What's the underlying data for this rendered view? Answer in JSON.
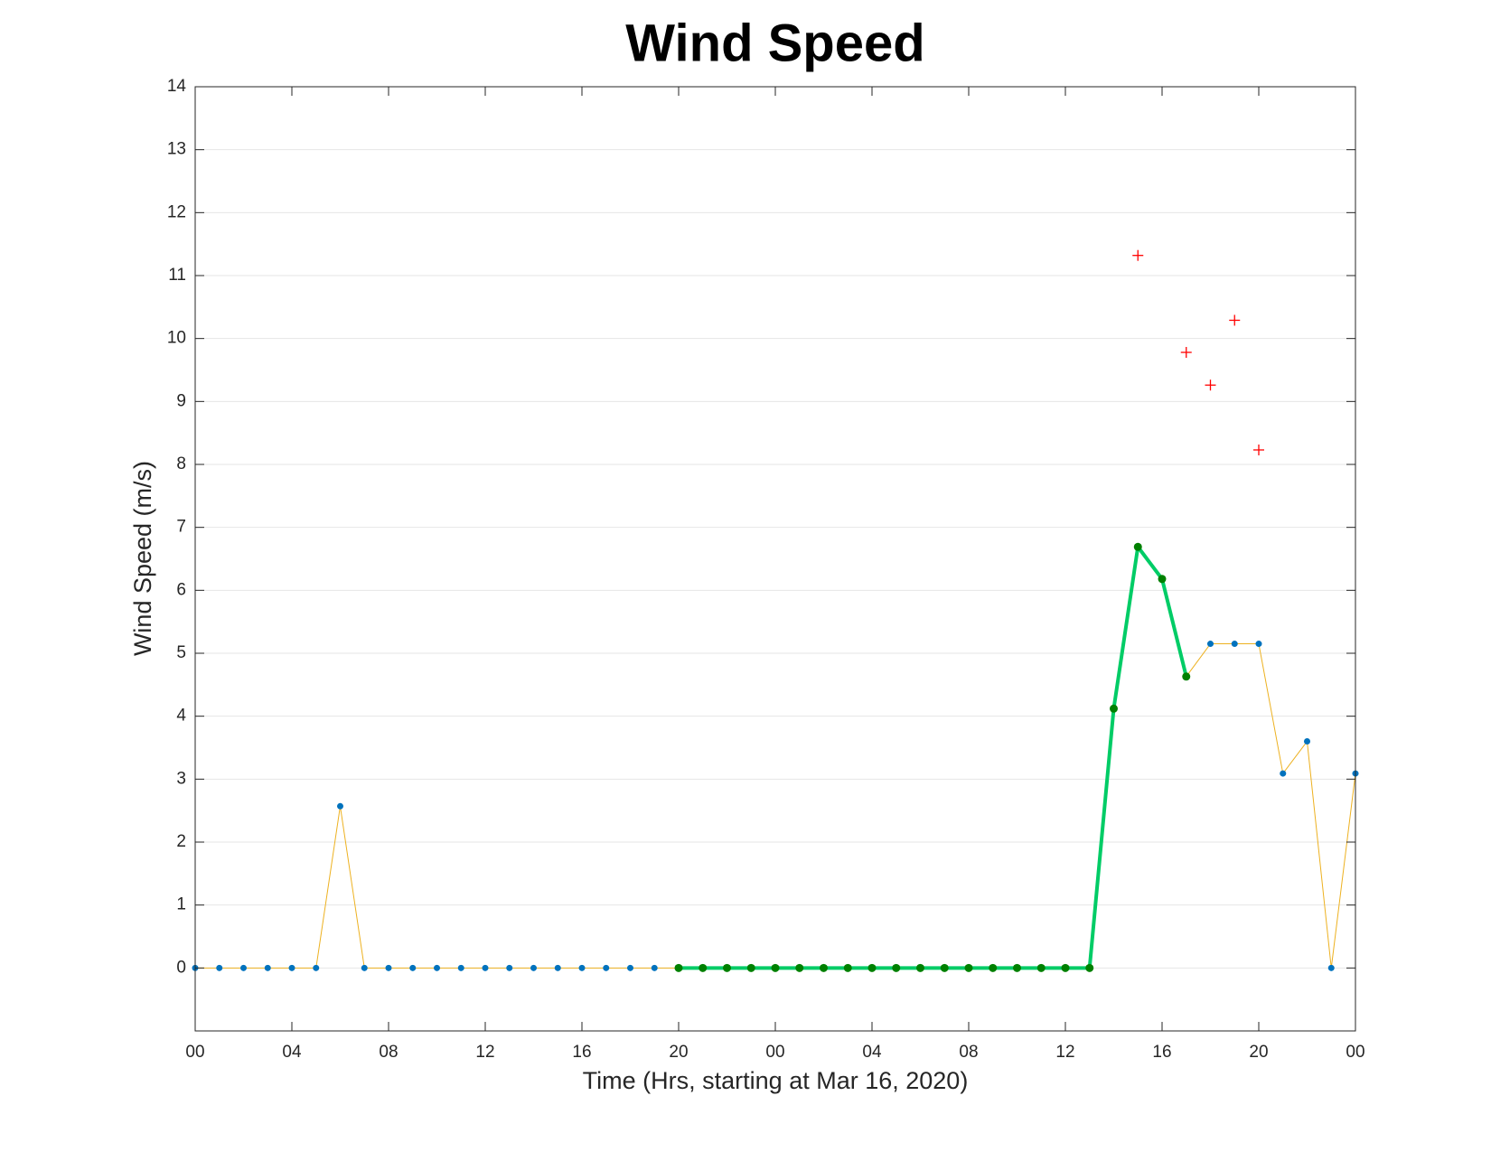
{
  "chart_data": {
    "type": "line",
    "title": "Wind Speed",
    "xlabel": "Time (Hrs, starting at Mar 16, 2020)",
    "ylabel": "Wind Speed (m/s)",
    "xlim": [
      0,
      48
    ],
    "xticks": [
      {
        "value": 0,
        "label": "00"
      },
      {
        "value": 4,
        "label": "04"
      },
      {
        "value": 8,
        "label": "08"
      },
      {
        "value": 12,
        "label": "12"
      },
      {
        "value": 16,
        "label": "16"
      },
      {
        "value": 20,
        "label": "20"
      },
      {
        "value": 24,
        "label": "00"
      },
      {
        "value": 28,
        "label": "04"
      },
      {
        "value": 32,
        "label": "08"
      },
      {
        "value": 36,
        "label": "12"
      },
      {
        "value": 40,
        "label": "16"
      },
      {
        "value": 44,
        "label": "20"
      },
      {
        "value": 48,
        "label": "00"
      }
    ],
    "ylim": [
      -1,
      14
    ],
    "yticks": [
      0,
      1,
      2,
      3,
      4,
      5,
      6,
      7,
      8,
      9,
      10,
      11,
      12,
      13,
      14
    ],
    "grid": true,
    "series": [
      {
        "type": "line",
        "color": "#edb120",
        "marker_color": "#0072bd",
        "line_width": 1,
        "marker": "dot",
        "x": [
          0,
          1,
          2,
          3,
          4,
          5,
          6,
          7,
          8,
          9,
          10,
          11,
          12,
          13,
          14,
          15,
          16,
          17,
          18,
          19,
          20,
          21,
          22,
          23,
          24,
          25,
          26,
          27,
          28,
          29,
          30,
          31,
          32,
          33,
          34,
          35,
          36,
          37,
          38,
          39,
          40,
          41,
          42,
          43,
          44,
          45,
          46,
          47,
          48
        ],
        "values": [
          0,
          0,
          0,
          0,
          0,
          0,
          2.57,
          0,
          0,
          0,
          0,
          0,
          0,
          0,
          0,
          0,
          0,
          0,
          0,
          0,
          0,
          0,
          0,
          0,
          0,
          0,
          0,
          0,
          0,
          0,
          0,
          0,
          0,
          0,
          0,
          0,
          0,
          0,
          4.12,
          6.69,
          6.18,
          4.63,
          5.15,
          5.15,
          5.15,
          3.09,
          3.6,
          0,
          3.09
        ]
      },
      {
        "type": "line",
        "color": "#00cc66",
        "marker_color": "#008000",
        "line_width": 4,
        "marker": "dot",
        "x": [
          20,
          21,
          22,
          23,
          24,
          25,
          26,
          27,
          28,
          29,
          30,
          31,
          32,
          33,
          34,
          35,
          36,
          37,
          38,
          39,
          40,
          41
        ],
        "values": [
          0,
          0,
          0,
          0,
          0,
          0,
          0,
          0,
          0,
          0,
          0,
          0,
          0,
          0,
          0,
          0,
          0,
          0,
          4.12,
          6.69,
          6.18,
          4.63
        ]
      },
      {
        "type": "scatter",
        "marker_color": "#ff0000",
        "marker": "plus",
        "x": [
          39,
          41,
          42,
          43,
          44
        ],
        "values": [
          11.32,
          9.78,
          9.26,
          10.29,
          8.23
        ]
      }
    ]
  }
}
